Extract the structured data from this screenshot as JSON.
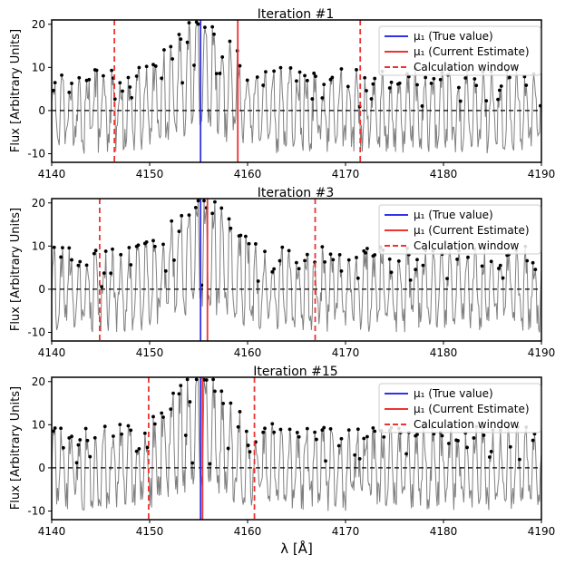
{
  "figure": {
    "xlabel": "λ [Å]",
    "ylabel": "Flux [Arbitrary Units]"
  },
  "legend": {
    "true_label": "μ₁ (True value)",
    "estimate_label": "μ₁ (Current Estimate)",
    "window_label": "Calculation window",
    "true_color": "#3333e6",
    "estimate_color": "#ee3333",
    "window_color": "#ee3333"
  },
  "chart_data": [
    {
      "type": "line",
      "title": "Iteration #1",
      "xlim": [
        4140,
        4190
      ],
      "ylim": [
        -12,
        21
      ],
      "xticks": [
        4140,
        4150,
        4160,
        4170,
        4180,
        4190
      ],
      "yticks": [
        -10,
        0,
        10,
        20
      ],
      "true_mu": 4155.2,
      "estimate_mu": 4159.0,
      "window": [
        4146.4,
        4171.5
      ],
      "baseline": 0,
      "series_color": "#808080",
      "points_color": "#000000"
    },
    {
      "type": "line",
      "title": "Iteration #3",
      "xlim": [
        4140,
        4190
      ],
      "ylim": [
        -12,
        21
      ],
      "xticks": [
        4140,
        4150,
        4160,
        4170,
        4180,
        4190
      ],
      "yticks": [
        -10,
        0,
        10,
        20
      ],
      "true_mu": 4155.2,
      "estimate_mu": 4155.9,
      "window": [
        4144.9,
        4166.9
      ],
      "baseline": 0,
      "series_color": "#808080",
      "points_color": "#000000"
    },
    {
      "type": "line",
      "title": "Iteration #15",
      "xlim": [
        4140,
        4190
      ],
      "ylim": [
        -12,
        21
      ],
      "xticks": [
        4140,
        4150,
        4160,
        4170,
        4180,
        4190
      ],
      "yticks": [
        -10,
        0,
        10,
        20
      ],
      "true_mu": 4155.2,
      "estimate_mu": 4155.4,
      "window": [
        4149.9,
        4160.7
      ],
      "baseline": 0,
      "series_color": "#808080",
      "points_color": "#000000"
    }
  ]
}
